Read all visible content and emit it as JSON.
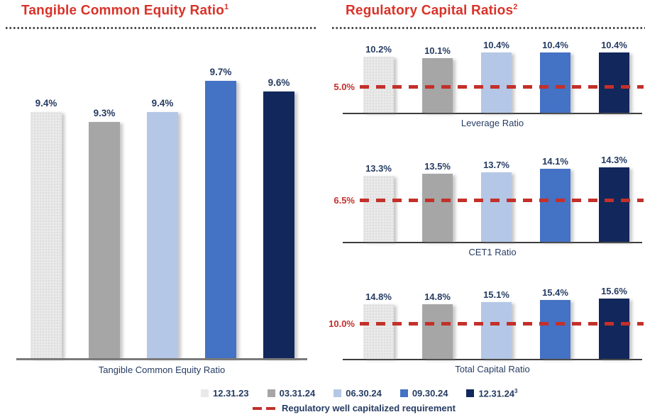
{
  "left_panel": {
    "title": "Tangible Common Equity Ratio",
    "title_superscript": "1"
  },
  "right_panel": {
    "title": "Regulatory Capital Ratios",
    "title_superscript": "2"
  },
  "chart_data": [
    {
      "type": "bar",
      "caption": "Tangible Common Equity Ratio",
      "categories": [
        "12.31.23",
        "03.31.24",
        "06.30.24",
        "09.30.24",
        "12.31.24"
      ],
      "values": [
        9.4,
        9.3,
        9.4,
        9.7,
        9.6
      ],
      "labels": [
        "9.4%",
        "9.3%",
        "9.4%",
        "9.7%",
        "9.6%"
      ],
      "ylim": [
        7.0,
        9.75
      ],
      "grid": false,
      "requirement": null
    },
    {
      "type": "bar",
      "caption": "Leverage Ratio",
      "categories": [
        "12.31.23",
        "03.31.24",
        "06.30.24",
        "09.30.24",
        "12.31.24"
      ],
      "values": [
        10.2,
        10.1,
        10.4,
        10.4,
        10.4
      ],
      "labels": [
        "10.2%",
        "10.1%",
        "10.4%",
        "10.4%",
        "10.4%"
      ],
      "ylim": [
        7.15,
        10.45
      ],
      "grid": false,
      "requirement": {
        "value": 5.0,
        "label": "5.0%"
      }
    },
    {
      "type": "bar",
      "caption": "CET1 Ratio",
      "categories": [
        "12.31.23",
        "03.31.24",
        "06.30.24",
        "09.30.24",
        "12.31.24"
      ],
      "values": [
        13.3,
        13.5,
        13.7,
        14.1,
        14.3
      ],
      "labels": [
        "13.3%",
        "13.5%",
        "13.7%",
        "14.1%",
        "14.3%"
      ],
      "ylim": [
        5.75,
        14.35
      ],
      "grid": false,
      "requirement": {
        "value": 6.5,
        "label": "6.5%"
      }
    },
    {
      "type": "bar",
      "caption": "Total Capital Ratio",
      "categories": [
        "12.31.23",
        "03.31.24",
        "06.30.24",
        "09.30.24",
        "12.31.24"
      ],
      "values": [
        14.8,
        14.8,
        15.1,
        15.4,
        15.6
      ],
      "labels": [
        "14.8%",
        "14.8%",
        "15.1%",
        "15.4%",
        "15.6%"
      ],
      "ylim": [
        7.1,
        15.7
      ],
      "grid": false,
      "requirement": {
        "value": 10.0,
        "label": "10.0%"
      }
    }
  ],
  "legend": {
    "items": [
      {
        "label": "12.31.23",
        "sup": "",
        "color": "#e9e9e9"
      },
      {
        "label": "03.31.24",
        "sup": "",
        "color": "#a6a6a6"
      },
      {
        "label": "06.30.24",
        "sup": "",
        "color": "#b4c7e7"
      },
      {
        "label": "09.30.24",
        "sup": "",
        "color": "#4472c4"
      },
      {
        "label": "12.31.24",
        "sup": "3",
        "color": "#12275b"
      }
    ],
    "requirement_label": "Regulatory well capitalized requirement"
  },
  "colors": {
    "background": "#ffffff",
    "title_red": "#d93228",
    "text_navy": "#263c63",
    "requirement_red": "#c3302a",
    "series": [
      "#e9e9e9",
      "#a6a6a6",
      "#b4c7e7",
      "#4472c4",
      "#12275b"
    ],
    "axis_left": "#7a7a7a",
    "axis_right": "#3d3d3d",
    "separator_dots": "#4d4d4d"
  }
}
